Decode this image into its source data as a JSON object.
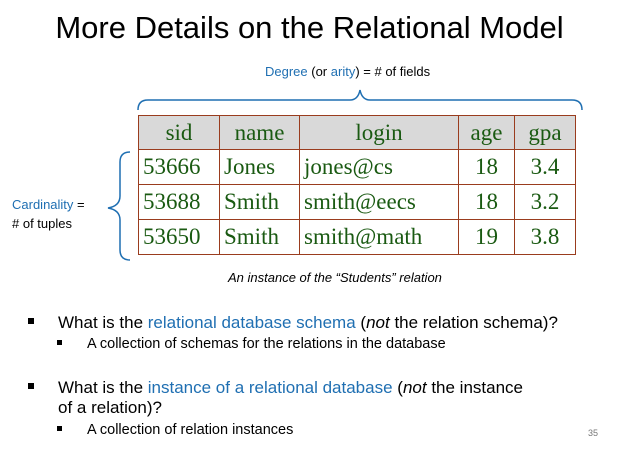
{
  "slide": {
    "title": "More Details on the Relational Model",
    "page_number": "35"
  },
  "degree": {
    "term": "Degree",
    "open": " (or ",
    "alt_term": "arity",
    "close": ") = # of fields"
  },
  "cardinality": {
    "term": "Cardinality",
    "suffix": " =",
    "line2": "# of tuples"
  },
  "table": {
    "headers": [
      "sid",
      "name",
      "login",
      "age",
      "gpa"
    ],
    "rows": [
      [
        "53666",
        "Jones",
        "jones@cs",
        "18",
        "3.4"
      ],
      [
        "53688",
        "Smith",
        "smith@eecs",
        "18",
        "3.2"
      ],
      [
        "53650",
        "Smith",
        "smith@math",
        "19",
        "3.8"
      ]
    ],
    "caption": "An instance of the “Students” relation"
  },
  "bullets": [
    {
      "prefix": "What is the ",
      "highlight": "relational database schema",
      "mid": " (",
      "emph": "not",
      "suffix": " the relation schema)?",
      "sub": "A collection of schemas for the relations in the database"
    },
    {
      "prefix": "What is the ",
      "highlight": "instance of a relational database",
      "mid": " (",
      "emph": "not",
      "suffix": " the instance",
      "line2": "of a relation)?",
      "sub": "A collection of relation instances"
    }
  ],
  "colors": {
    "accent": "#1f6fb2",
    "table_text": "#1a5a12",
    "table_border": "#9a3c1e",
    "header_fill": "#d9d9d9"
  }
}
